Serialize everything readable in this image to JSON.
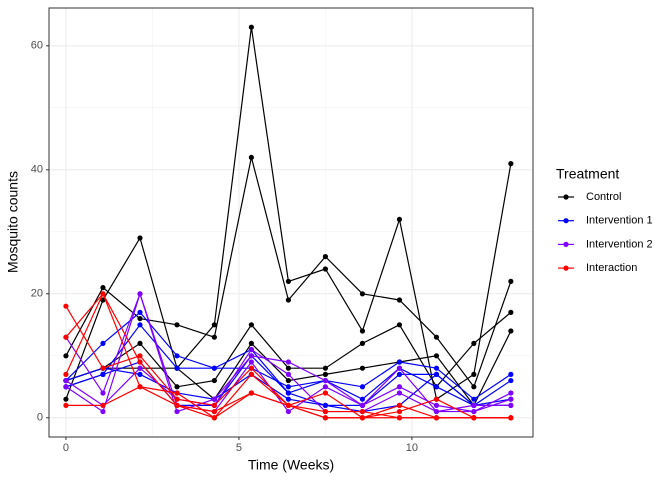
{
  "chart_data": {
    "type": "line",
    "x_label": "Time (Weeks)",
    "y_label": "Mosquito counts",
    "legend_title": "Treatment",
    "legend_position": "right",
    "grid": true,
    "x": [
      0,
      1.07,
      2.14,
      3.21,
      4.29,
      5.36,
      6.43,
      7.5,
      8.57,
      9.64,
      10.71,
      11.79,
      12.86
    ],
    "xlim": [
      -0.49,
      13.5
    ],
    "xticks": [
      0,
      5,
      10
    ],
    "ylim": [
      -3.1,
      66.1
    ],
    "yticks": [
      0,
      20,
      40,
      60
    ],
    "groups": [
      {
        "name": "Control",
        "color": "#000000",
        "lines": [
          [
            3,
            19,
            29,
            8,
            15,
            63,
            22,
            24,
            14,
            32,
            3,
            7,
            41
          ],
          [
            10,
            21,
            16,
            15,
            13,
            42,
            19,
            26,
            20,
            19,
            13,
            5,
            22
          ],
          [
            6,
            8,
            12,
            5,
            6,
            15,
            8,
            8,
            12,
            15,
            5,
            12,
            17
          ],
          [
            6,
            8,
            8,
            8,
            3,
            12,
            6,
            7,
            8,
            9,
            10,
            2,
            14
          ]
        ]
      },
      {
        "name": "Intervention 1",
        "color": "#0000ff",
        "lines": [
          [
            6,
            12,
            17,
            10,
            8,
            8,
            5,
            6,
            5,
            9,
            8,
            3,
            7
          ],
          [
            5,
            7,
            15,
            8,
            8,
            11,
            4,
            6,
            3,
            8,
            5,
            2,
            6
          ],
          [
            6,
            8,
            7,
            4,
            3,
            7,
            3,
            2,
            2,
            7,
            7,
            2,
            3
          ],
          [
            5,
            7,
            9,
            2,
            2,
            10,
            4,
            2,
            1,
            2,
            7,
            2,
            2
          ]
        ]
      },
      {
        "name": "Intervention 2",
        "color": "#8000ff",
        "lines": [
          [
            13,
            4,
            20,
            1,
            3,
            10,
            9,
            6,
            2,
            5,
            2,
            1,
            4
          ],
          [
            5,
            1,
            20,
            2,
            1,
            9,
            1,
            5,
            2,
            8,
            1,
            1,
            3
          ],
          [
            6,
            2,
            8,
            3,
            2,
            11,
            7,
            1,
            1,
            4,
            1,
            2,
            2
          ]
        ]
      },
      {
        "name": "Interaction",
        "color": "#ff0000",
        "lines": [
          [
            18,
            8,
            10,
            3,
            2,
            8,
            2,
            4,
            0,
            0,
            0,
            0,
            0
          ],
          [
            13,
            20,
            9,
            2,
            1,
            4,
            2,
            0,
            0,
            1,
            3,
            0,
            0
          ],
          [
            2,
            2,
            5,
            4,
            0,
            7,
            2,
            0,
            0,
            2,
            0,
            0,
            0
          ],
          [
            7,
            20,
            5,
            2,
            0,
            4,
            2,
            1,
            1,
            0,
            0,
            0,
            0
          ]
        ]
      }
    ]
  }
}
